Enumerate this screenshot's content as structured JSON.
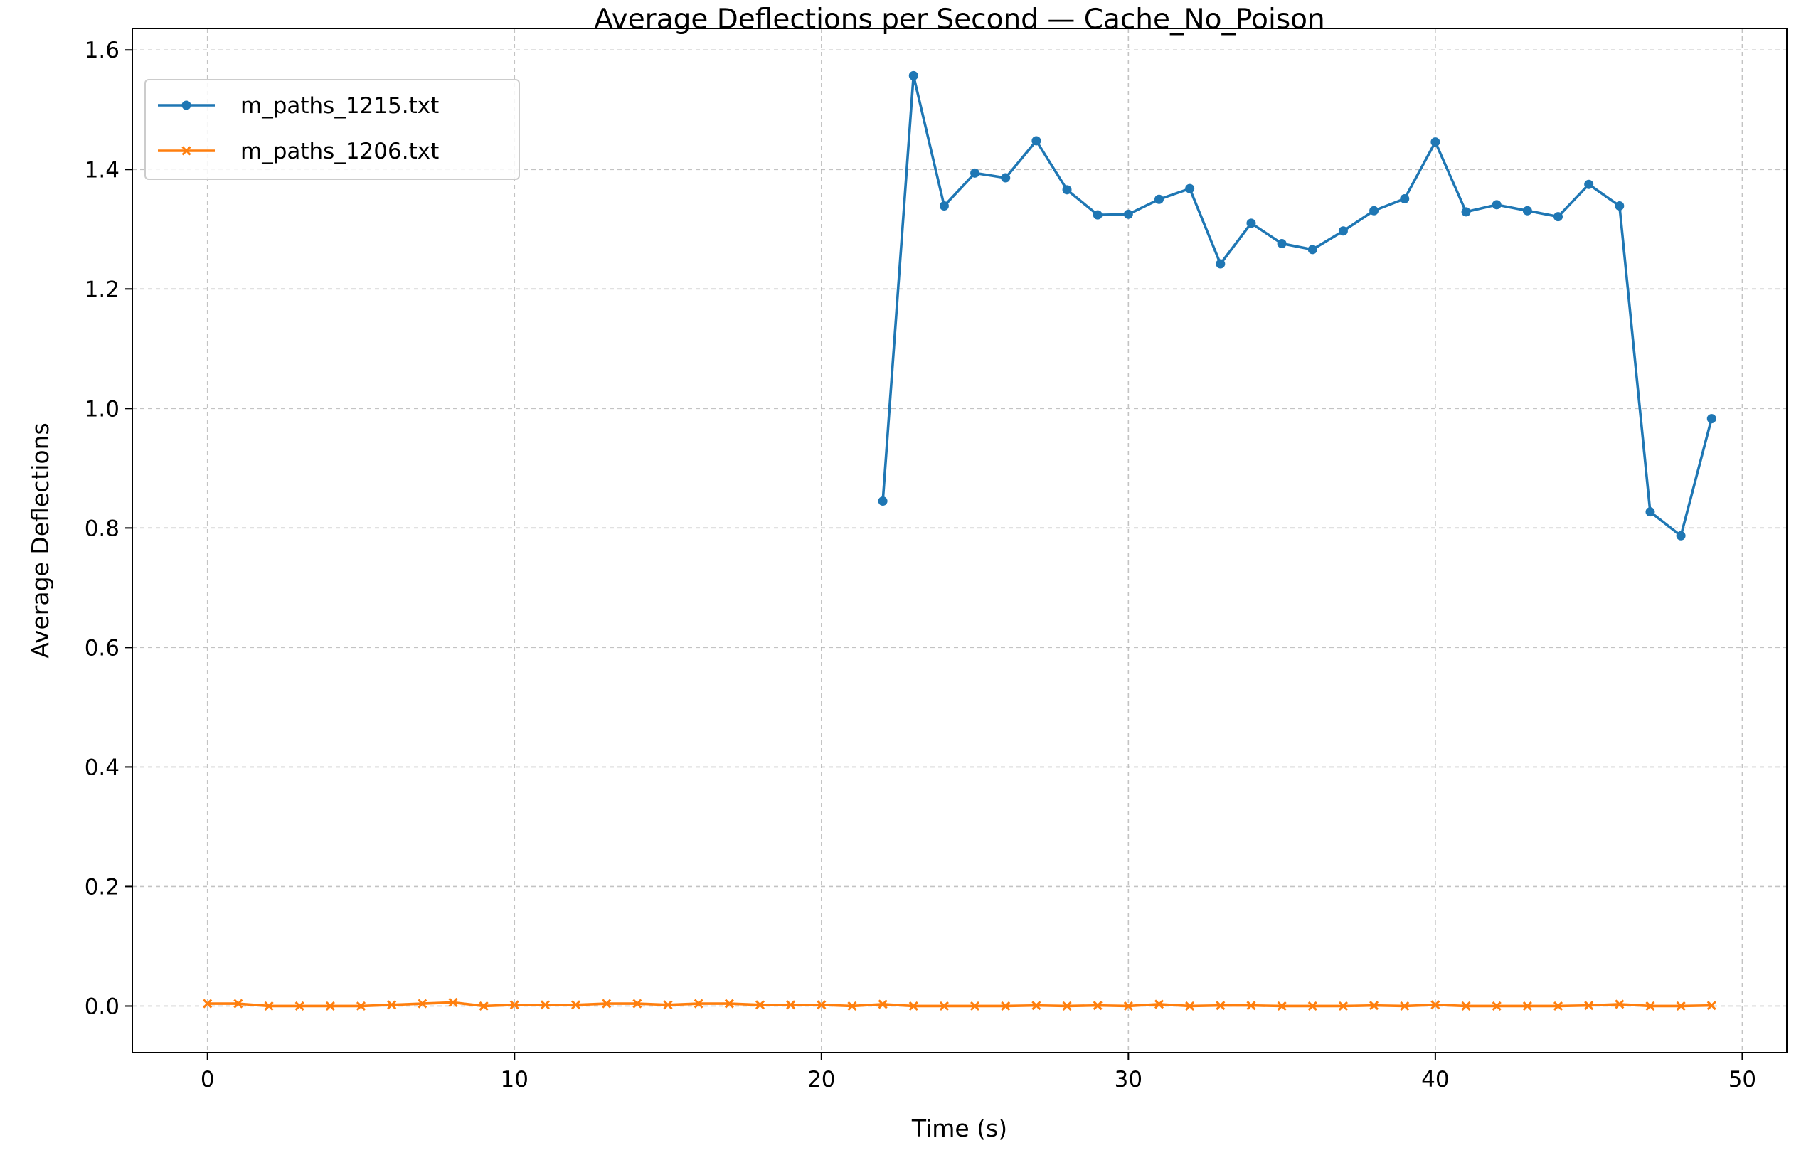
{
  "chart_data": {
    "type": "line",
    "title": "Average Deflections per Second — Cache_No_Poison",
    "xlabel": "Time (s)",
    "ylabel": "Average Deflections",
    "xlim": [
      -2.45,
      51.45
    ],
    "ylim": [
      -0.078,
      1.636
    ],
    "xticks": [
      0,
      10,
      20,
      30,
      40,
      50
    ],
    "yticks": [
      0.0,
      0.2,
      0.4,
      0.6,
      0.8,
      1.0,
      1.2,
      1.4,
      1.6
    ],
    "xtick_labels": [
      "0",
      "10",
      "20",
      "30",
      "40",
      "50"
    ],
    "ytick_labels": [
      "0.0",
      "0.2",
      "0.4",
      "0.6",
      "0.8",
      "1.0",
      "1.2",
      "1.4",
      "1.6"
    ],
    "grid": true,
    "legend_position": "top-left",
    "series": [
      {
        "name": "m_paths_1215.txt",
        "color": "#1f77b4",
        "marker": "circle",
        "x": [
          22,
          23,
          24,
          25,
          26,
          27,
          28,
          29,
          30,
          31,
          32,
          33,
          34,
          35,
          36,
          37,
          38,
          39,
          40,
          41,
          42,
          43,
          44,
          45,
          46,
          47,
          48,
          49
        ],
        "values": [
          0.845,
          1.557,
          1.339,
          1.394,
          1.386,
          1.448,
          1.366,
          1.324,
          1.325,
          1.35,
          1.368,
          1.242,
          1.31,
          1.276,
          1.266,
          1.297,
          1.331,
          1.351,
          1.446,
          1.329,
          1.341,
          1.331,
          1.321,
          1.375,
          1.339,
          0.827,
          0.787,
          0.983
        ]
      },
      {
        "name": "m_paths_1206.txt",
        "color": "#ff7f0e",
        "marker": "x",
        "x": [
          0,
          1,
          2,
          3,
          4,
          5,
          6,
          7,
          8,
          9,
          10,
          11,
          12,
          13,
          14,
          15,
          16,
          17,
          18,
          19,
          20,
          21,
          22,
          23,
          24,
          25,
          26,
          27,
          28,
          29,
          30,
          31,
          32,
          33,
          34,
          35,
          36,
          37,
          38,
          39,
          40,
          41,
          42,
          43,
          44,
          45,
          46,
          47,
          48,
          49
        ],
        "values": [
          0.004,
          0.004,
          0.0,
          0.0,
          0.0,
          0.0,
          0.002,
          0.004,
          0.006,
          0.0,
          0.002,
          0.002,
          0.002,
          0.004,
          0.004,
          0.002,
          0.004,
          0.004,
          0.002,
          0.002,
          0.002,
          0.0,
          0.003,
          0.0,
          0.0,
          0.0,
          0.0,
          0.001,
          0.0,
          0.001,
          0.0,
          0.003,
          0.0,
          0.001,
          0.001,
          0.0,
          0.0,
          0.0,
          0.001,
          0.0,
          0.002,
          0.0,
          0.0,
          0.0,
          0.0,
          0.001,
          0.003,
          0.0,
          0.0,
          0.001
        ]
      }
    ]
  }
}
